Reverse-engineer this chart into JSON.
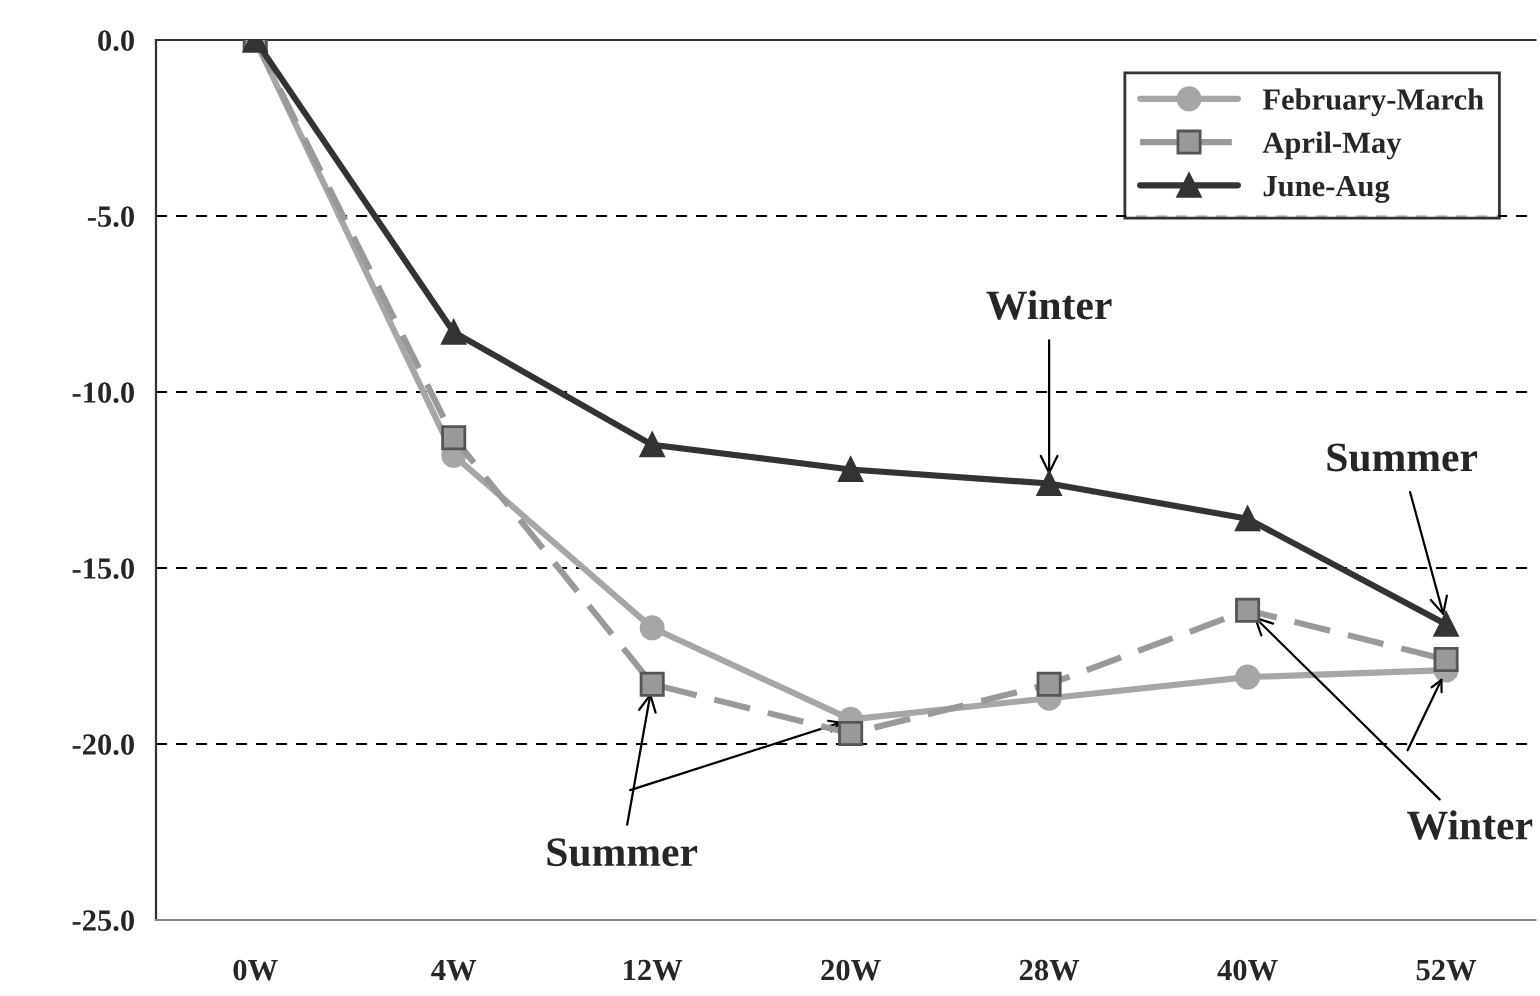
{
  "chart_data": {
    "type": "line",
    "categories": [
      "0W",
      "4W",
      "12W",
      "20W",
      "28W",
      "40W",
      "52W"
    ],
    "series": [
      {
        "name": "February-March",
        "color": "#a6a6a6",
        "marker": "circle",
        "line_style": "solid",
        "values": [
          0,
          -11.8,
          -16.7,
          -19.3,
          -18.7,
          -18.1,
          -17.9
        ]
      },
      {
        "name": "April-May",
        "color": "#999999",
        "marker": "square",
        "line_style": "dashed",
        "values": [
          0,
          -11.3,
          -18.3,
          -19.7,
          -18.3,
          -16.2,
          -17.6
        ]
      },
      {
        "name": "June-Aug",
        "color": "#333333",
        "marker": "triangle",
        "line_style": "solid",
        "values": [
          0,
          -8.3,
          -11.5,
          -12.2,
          -12.6,
          -13.6,
          -16.6
        ]
      }
    ],
    "ylim": [
      -25,
      0
    ],
    "yticks": [
      {
        "value": 0,
        "label": "0.0"
      },
      {
        "value": -5,
        "label": "-5.0"
      },
      {
        "value": -10,
        "label": "-10.0"
      },
      {
        "value": -15,
        "label": "-15.0"
      },
      {
        "value": -20,
        "label": "-20.0"
      },
      {
        "value": -25,
        "label": "-25.0"
      }
    ],
    "grid": "y",
    "legend": "top right",
    "annotations": [
      {
        "text": "Winter",
        "x": "28W",
        "y": -12.6
      },
      {
        "text": "Summer",
        "x": "52W",
        "y": -16.6
      },
      {
        "text": "Winter",
        "x": "40W",
        "y": -16.2
      },
      {
        "text": "Summer",
        "x": "12W",
        "y": -18.3
      }
    ]
  }
}
